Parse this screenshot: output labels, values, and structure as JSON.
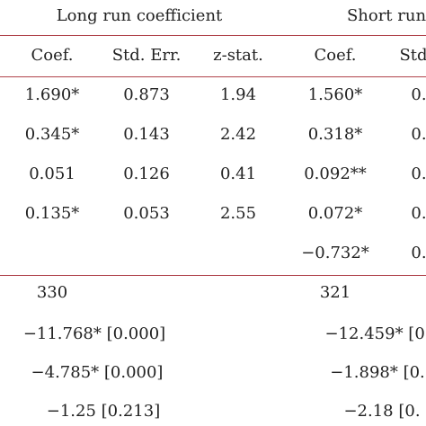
{
  "header": {
    "group_long": "Long run coefficient",
    "group_short": "Short run",
    "long_cols": [
      "Coef.",
      "Std. Err.",
      "z-stat."
    ],
    "short_cols": [
      "Coef.",
      "Std"
    ]
  },
  "rows": [
    {
      "long_coef": "1.690*",
      "long_se": "0.873",
      "long_z": "1.94",
      "short_coef": "1.560*",
      "short_se": "0."
    },
    {
      "long_coef": "0.345*",
      "long_se": "0.143",
      "long_z": "2.42",
      "short_coef": "0.318*",
      "short_se": "0."
    },
    {
      "long_coef": "0.051",
      "long_se": "0.126",
      "long_z": "0.41",
      "short_coef": "0.092**",
      "short_se": "0."
    },
    {
      "long_coef": "0.135*",
      "long_se": "0.053",
      "long_z": "2.55",
      "short_coef": "0.072*",
      "short_se": "0."
    },
    {
      "long_coef": "",
      "long_se": "",
      "long_z": "",
      "short_coef": "−0.732*",
      "short_se": "0."
    }
  ],
  "stats": [
    {
      "long": "330",
      "short": "321"
    },
    {
      "long": "−11.768* [0.000]",
      "short": "−12.459* [0."
    },
    {
      "long": "−4.785* [0.000]",
      "short": "−1.898* [0."
    },
    {
      "long": "−1.25 [0.213]",
      "short": "−2.18 [0."
    }
  ]
}
